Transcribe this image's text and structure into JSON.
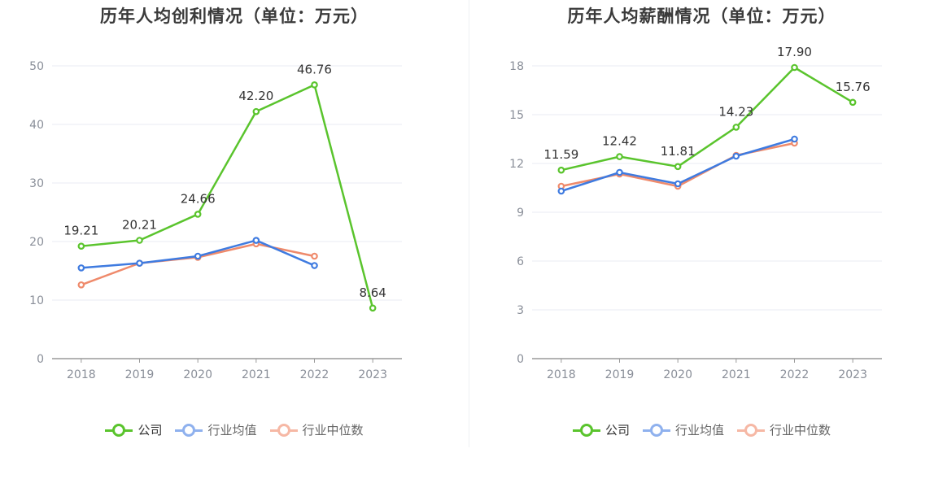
{
  "charts": [
    {
      "title": "历年人均创利情况（单位：万元）",
      "legend": [
        "公司",
        "行业均值",
        "行业中位数"
      ]
    },
    {
      "title": "历年人均薪酬情况（单位：万元）",
      "legend": [
        "公司",
        "行业均值",
        "行业中位数"
      ]
    }
  ],
  "colors": {
    "company": "#5ac42d",
    "industry_avg": "#3f7be0",
    "industry_median": "#ef8a6b",
    "legend_avg": "#8fb1ee",
    "legend_median": "#f6b8a5",
    "grid": "#e8ebf3",
    "axis": "#9a9a9a"
  },
  "chart_data": [
    {
      "type": "line",
      "title": "历年人均创利情况（单位：万元）",
      "categories": [
        "2018",
        "2019",
        "2020",
        "2021",
        "2022",
        "2023"
      ],
      "ylim": [
        0,
        50
      ],
      "yticks": [
        0,
        10,
        20,
        30,
        40,
        50
      ],
      "grid": true,
      "legend_position": "bottom",
      "series": [
        {
          "name": "公司",
          "values": [
            19.21,
            20.21,
            24.66,
            42.2,
            46.76,
            8.64
          ],
          "labels": [
            "19.21",
            "20.21",
            "24.66",
            "42.20",
            "46.76",
            "8.64"
          ]
        },
        {
          "name": "行业均值",
          "values": [
            15.5,
            16.3,
            17.5,
            20.2,
            15.9,
            null
          ]
        },
        {
          "name": "行业中位数",
          "values": [
            12.6,
            16.3,
            17.3,
            19.6,
            17.5,
            null
          ]
        }
      ]
    },
    {
      "type": "line",
      "title": "历年人均薪酬情况（单位：万元）",
      "categories": [
        "2018",
        "2019",
        "2020",
        "2021",
        "2022",
        "2023"
      ],
      "ylim": [
        0,
        18
      ],
      "yticks": [
        0,
        3,
        6,
        9,
        12,
        15,
        18
      ],
      "grid": true,
      "legend_position": "bottom",
      "series": [
        {
          "name": "公司",
          "values": [
            11.59,
            12.42,
            11.81,
            14.23,
            17.9,
            15.76
          ],
          "labels": [
            "11.59",
            "12.42",
            "11.81",
            "14.23",
            "17.90",
            "15.76"
          ]
        },
        {
          "name": "行业均值",
          "values": [
            10.3,
            11.45,
            10.75,
            12.45,
            13.5,
            null
          ]
        },
        {
          "name": "行业中位数",
          "values": [
            10.6,
            11.35,
            10.6,
            12.5,
            13.25,
            null
          ]
        }
      ]
    }
  ]
}
